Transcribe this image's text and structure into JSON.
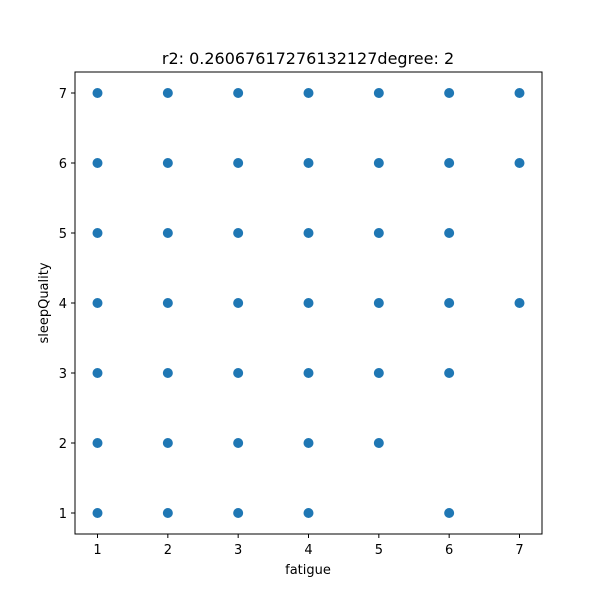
{
  "chart_data": {
    "type": "scatter",
    "title": "r2: 0.26067617276132127degree: 2",
    "xlabel": "fatigue",
    "ylabel": "sleepQuality",
    "xlim": [
      0.68,
      7.32
    ],
    "ylim": [
      0.7,
      7.3
    ],
    "xticks": [
      1,
      2,
      3,
      4,
      5,
      6,
      7
    ],
    "yticks": [
      1,
      2,
      3,
      4,
      5,
      6,
      7
    ],
    "grid": false,
    "legend": "none",
    "marker_color": "#1f77b4",
    "series": [
      {
        "name": "data",
        "points": [
          [
            1,
            7
          ],
          [
            2,
            7
          ],
          [
            3,
            7
          ],
          [
            4,
            7
          ],
          [
            5,
            7
          ],
          [
            6,
            7
          ],
          [
            7,
            7
          ],
          [
            1,
            6
          ],
          [
            2,
            6
          ],
          [
            3,
            6
          ],
          [
            4,
            6
          ],
          [
            5,
            6
          ],
          [
            6,
            6
          ],
          [
            7,
            6
          ],
          [
            1,
            5
          ],
          [
            2,
            5
          ],
          [
            3,
            5
          ],
          [
            4,
            5
          ],
          [
            5,
            5
          ],
          [
            6,
            5
          ],
          [
            1,
            4
          ],
          [
            2,
            4
          ],
          [
            3,
            4
          ],
          [
            4,
            4
          ],
          [
            5,
            4
          ],
          [
            6,
            4
          ],
          [
            7,
            4
          ],
          [
            1,
            3
          ],
          [
            2,
            3
          ],
          [
            3,
            3
          ],
          [
            4,
            3
          ],
          [
            5,
            3
          ],
          [
            6,
            3
          ],
          [
            1,
            2
          ],
          [
            2,
            2
          ],
          [
            3,
            2
          ],
          [
            4,
            2
          ],
          [
            5,
            2
          ],
          [
            1,
            1
          ],
          [
            2,
            1
          ],
          [
            3,
            1
          ],
          [
            4,
            1
          ],
          [
            6,
            1
          ]
        ]
      }
    ]
  }
}
